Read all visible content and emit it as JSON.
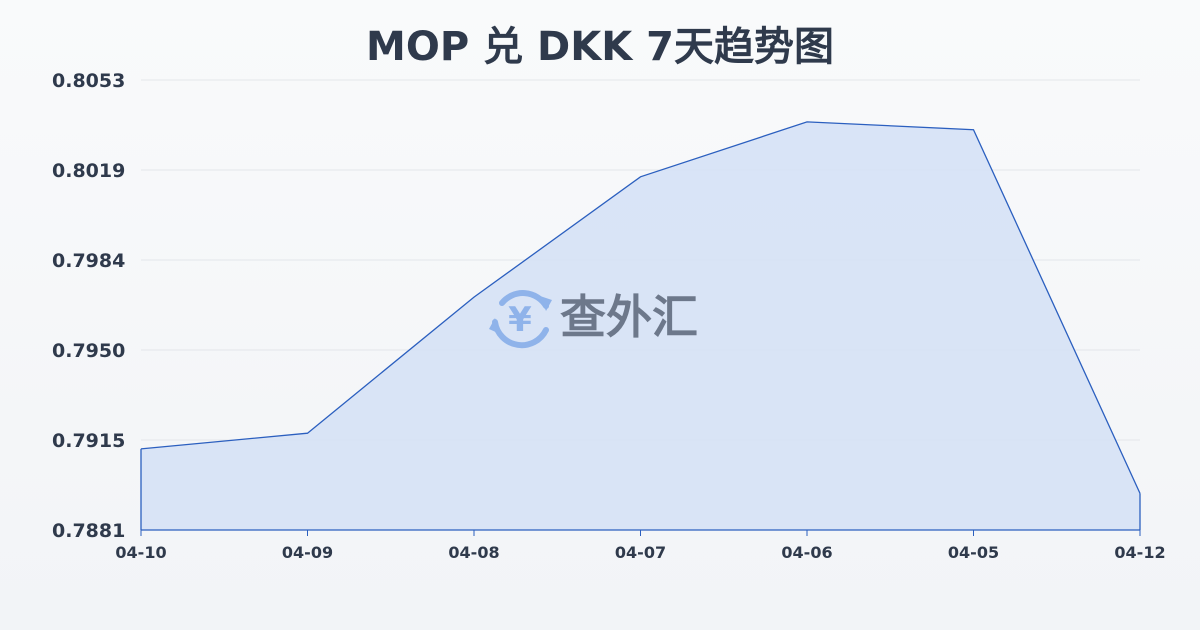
{
  "chart_data": {
    "type": "area",
    "title": "MOP 兑 DKK 7天趋势图",
    "categories": [
      "04-10",
      "04-09",
      "04-08",
      "04-07",
      "04-06",
      "04-05",
      "04-12"
    ],
    "values": [
      0.7912,
      0.7918,
      0.797,
      0.8016,
      0.8037,
      0.8034,
      0.7895
    ],
    "yticks": [
      "0.8053",
      "0.8019",
      "0.7984",
      "0.7950",
      "0.7915",
      "0.7881"
    ],
    "ylim": [
      0.7881,
      0.8053
    ],
    "grid": true,
    "colors": {
      "line": "#2b5fbf",
      "fill": "#d4e0f6",
      "text": "#2f3a4c",
      "grid": "#e3e6ea"
    }
  },
  "watermark": {
    "text": "查外汇",
    "icon": "yen-exchange-icon"
  }
}
